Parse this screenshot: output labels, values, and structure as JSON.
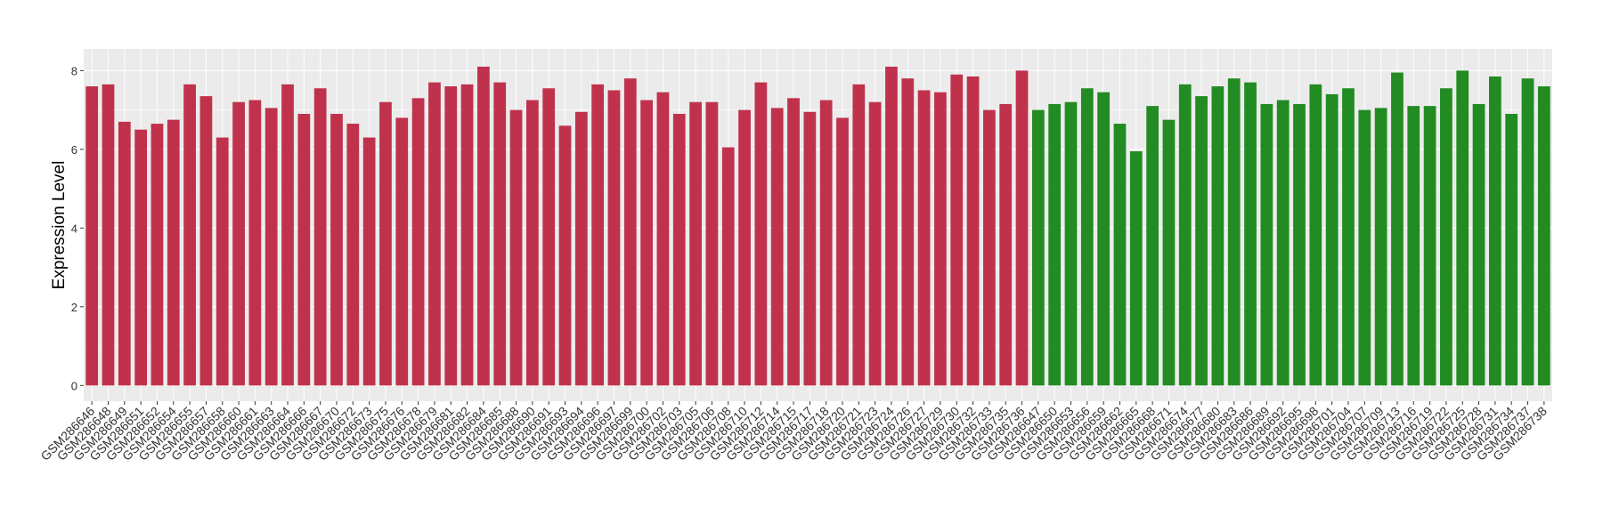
{
  "chart_data": {
    "type": "bar",
    "y_label": "Expression Level",
    "categories": [
      "GSM286646",
      "GSM286648",
      "GSM286649",
      "GSM286651",
      "GSM286652",
      "GSM286654",
      "GSM286655",
      "GSM286657",
      "GSM286658",
      "GSM286660",
      "GSM286661",
      "GSM286663",
      "GSM286664",
      "GSM286666",
      "GSM286667",
      "GSM286670",
      "GSM286672",
      "GSM286673",
      "GSM286675",
      "GSM286676",
      "GSM286678",
      "GSM286679",
      "GSM286681",
      "GSM286682",
      "GSM286684",
      "GSM286685",
      "GSM286688",
      "GSM286690",
      "GSM286691",
      "GSM286693",
      "GSM286694",
      "GSM286696",
      "GSM286697",
      "GSM286699",
      "GSM286700",
      "GSM286702",
      "GSM286703",
      "GSM286705",
      "GSM286706",
      "GSM286708",
      "GSM286710",
      "GSM286712",
      "GSM286714",
      "GSM286715",
      "GSM286717",
      "GSM286718",
      "GSM286720",
      "GSM286721",
      "GSM286723",
      "GSM286724",
      "GSM286726",
      "GSM286727",
      "GSM286729",
      "GSM286730",
      "GSM286732",
      "GSM286733",
      "GSM286735",
      "GSM286736",
      "GSM286647",
      "GSM286650",
      "GSM286653",
      "GSM286656",
      "GSM286659",
      "GSM286662",
      "GSM286665",
      "GSM286668",
      "GSM286671",
      "GSM286674",
      "GSM286677",
      "GSM286680",
      "GSM286683",
      "GSM286686",
      "GSM286689",
      "GSM286692",
      "GSM286695",
      "GSM286698",
      "GSM286701",
      "GSM286704",
      "GSM286707",
      "GSM286709",
      "GSM286713",
      "GSM286716",
      "GSM286719",
      "GSM286722",
      "GSM286725",
      "GSM286728",
      "GSM286731",
      "GSM286734",
      "GSM286737",
      "GSM286738"
    ],
    "values": [
      7.6,
      7.65,
      6.7,
      6.5,
      6.65,
      6.75,
      7.65,
      7.35,
      6.3,
      7.2,
      7.25,
      7.05,
      7.65,
      6.9,
      7.55,
      6.9,
      6.65,
      6.3,
      7.2,
      6.8,
      7.3,
      7.7,
      7.6,
      7.65,
      8.1,
      7.7,
      7.0,
      7.25,
      7.55,
      6.6,
      6.95,
      7.65,
      7.5,
      7.8,
      7.25,
      7.45,
      6.9,
      7.2,
      7.2,
      6.05,
      7.0,
      7.7,
      7.05,
      7.3,
      6.95,
      7.25,
      6.8,
      7.65,
      7.2,
      8.1,
      7.8,
      7.5,
      7.45,
      7.9,
      7.85,
      7.0,
      7.15,
      8.0,
      7.0,
      7.15,
      7.2,
      7.55,
      7.45,
      6.65,
      5.95,
      7.1,
      6.75,
      7.65,
      7.35,
      7.6,
      7.8,
      7.7,
      7.15,
      7.25,
      7.15,
      7.65,
      7.4,
      7.55,
      7.0,
      7.05,
      7.95,
      7.1,
      7.1,
      7.55,
      8.0,
      7.15,
      7.85,
      6.9,
      7.8,
      7.6
    ],
    "colors": [
      "#c0324c",
      "#c0324c",
      "#c0324c",
      "#c0324c",
      "#c0324c",
      "#c0324c",
      "#c0324c",
      "#c0324c",
      "#c0324c",
      "#c0324c",
      "#c0324c",
      "#c0324c",
      "#c0324c",
      "#c0324c",
      "#c0324c",
      "#c0324c",
      "#c0324c",
      "#c0324c",
      "#c0324c",
      "#c0324c",
      "#c0324c",
      "#c0324c",
      "#c0324c",
      "#c0324c",
      "#c0324c",
      "#c0324c",
      "#c0324c",
      "#c0324c",
      "#c0324c",
      "#c0324c",
      "#c0324c",
      "#c0324c",
      "#c0324c",
      "#c0324c",
      "#c0324c",
      "#c0324c",
      "#c0324c",
      "#c0324c",
      "#c0324c",
      "#c0324c",
      "#c0324c",
      "#c0324c",
      "#c0324c",
      "#c0324c",
      "#c0324c",
      "#c0324c",
      "#c0324c",
      "#c0324c",
      "#c0324c",
      "#c0324c",
      "#c0324c",
      "#c0324c",
      "#c0324c",
      "#c0324c",
      "#c0324c",
      "#c0324c",
      "#c0324c",
      "#c0324c",
      "#228b22",
      "#228b22",
      "#228b22",
      "#228b22",
      "#228b22",
      "#228b22",
      "#228b22",
      "#228b22",
      "#228b22",
      "#228b22",
      "#228b22",
      "#228b22",
      "#228b22",
      "#228b22",
      "#228b22",
      "#228b22",
      "#228b22",
      "#228b22",
      "#228b22",
      "#228b22",
      "#228b22",
      "#228b22",
      "#228b22",
      "#228b22",
      "#228b22",
      "#228b22",
      "#228b22",
      "#228b22",
      "#228b22",
      "#228b22",
      "#228b22",
      "#228b22"
    ],
    "ylim": [
      -0.4,
      8.55
    ],
    "yticks": [
      0,
      2,
      4,
      6,
      8
    ],
    "grid": true
  }
}
